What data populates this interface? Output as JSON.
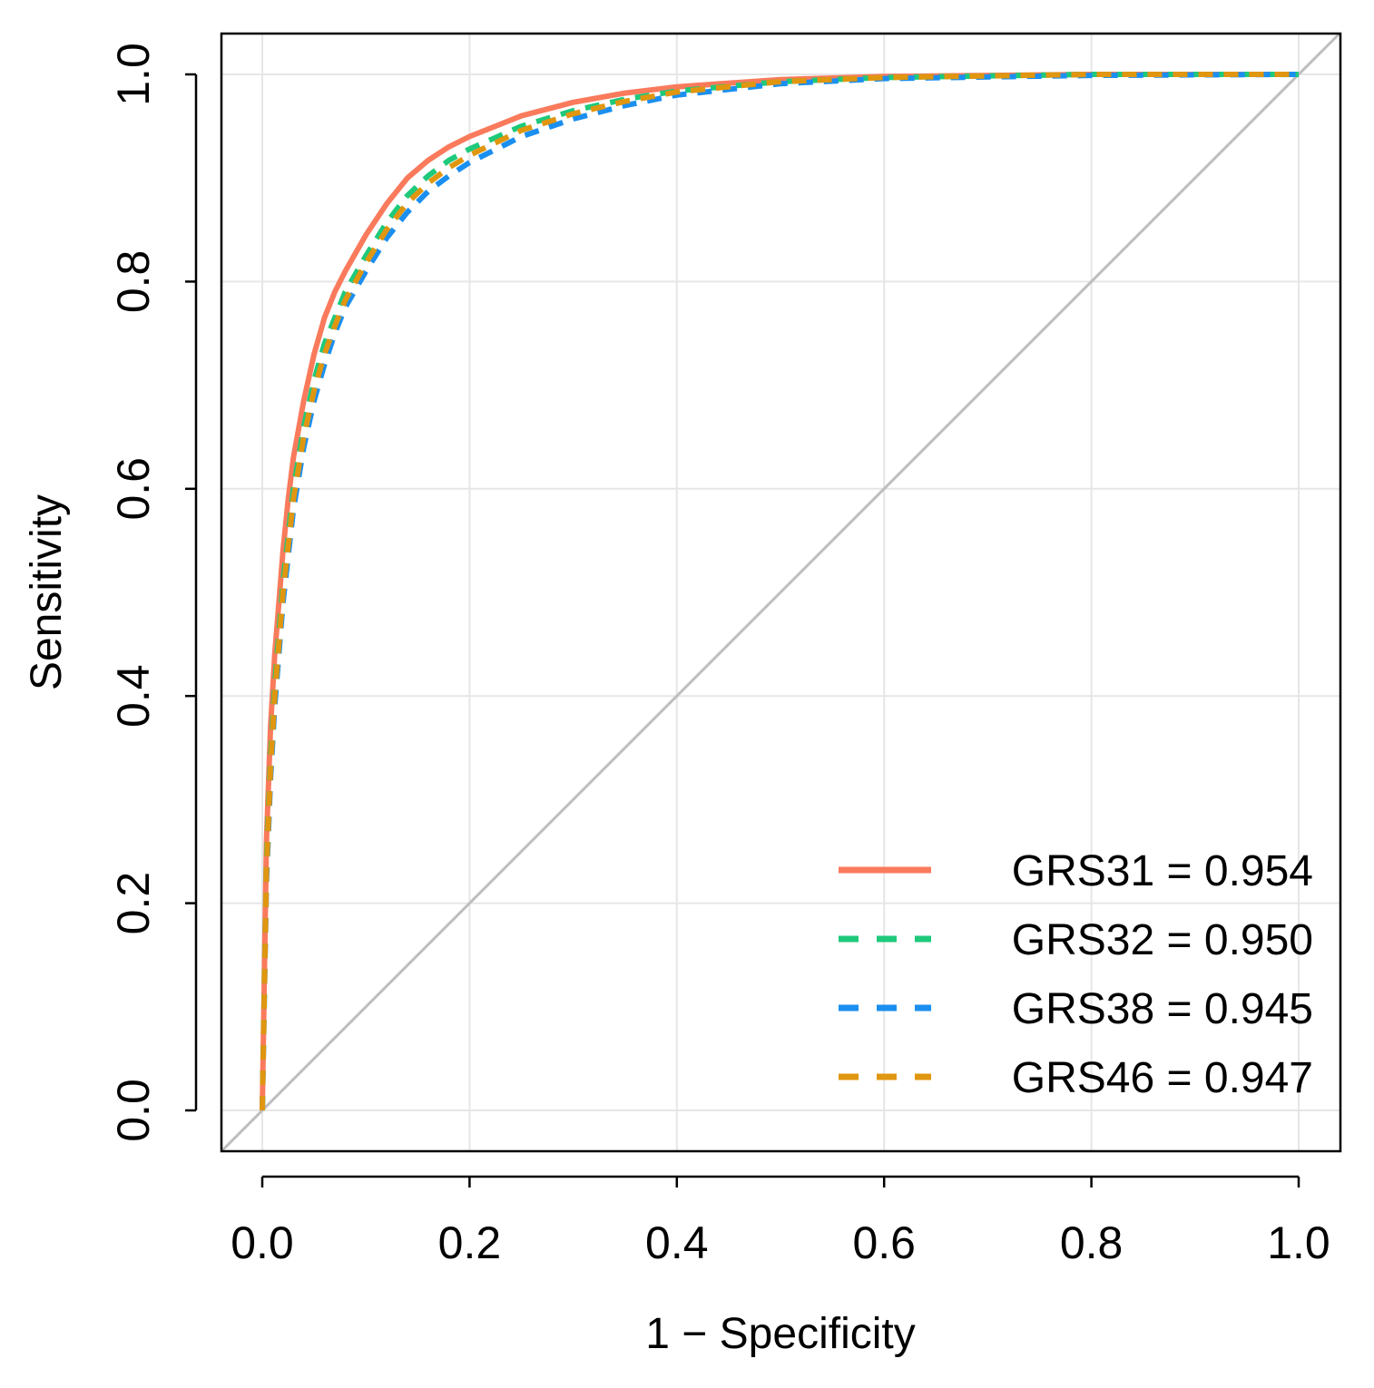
{
  "chart_data": {
    "type": "line",
    "title": "",
    "xlabel": "1 − Specificity",
    "ylabel": "Sensitivity",
    "xlim": [
      0,
      1
    ],
    "ylim": [
      0,
      1
    ],
    "x_ticks": [
      "0.0",
      "0.2",
      "0.4",
      "0.6",
      "0.8",
      "1.0"
    ],
    "y_ticks": [
      "0.0",
      "0.2",
      "0.4",
      "0.6",
      "0.8",
      "1.0"
    ],
    "grid": true,
    "legend_position": "bottom-right",
    "reference_line": {
      "from": [
        0,
        0
      ],
      "to": [
        1,
        1
      ],
      "color": "#bebebe"
    },
    "series": [
      {
        "name": "GRS31",
        "label": "GRS31 = 0.954",
        "auc": 0.954,
        "color": "#fa7a5c",
        "style": "solid",
        "x": [
          0,
          0.004,
          0.008,
          0.012,
          0.016,
          0.02,
          0.025,
          0.03,
          0.04,
          0.05,
          0.06,
          0.07,
          0.08,
          0.1,
          0.12,
          0.14,
          0.16,
          0.18,
          0.2,
          0.25,
          0.3,
          0.35,
          0.4,
          0.5,
          0.6,
          0.8,
          1.0
        ],
        "y": [
          0,
          0.26,
          0.37,
          0.44,
          0.49,
          0.54,
          0.59,
          0.63,
          0.685,
          0.73,
          0.765,
          0.79,
          0.81,
          0.845,
          0.875,
          0.9,
          0.917,
          0.93,
          0.94,
          0.96,
          0.973,
          0.982,
          0.988,
          0.995,
          0.998,
          1.0,
          1.0
        ]
      },
      {
        "name": "GRS32",
        "label": "GRS32 = 0.950",
        "auc": 0.95,
        "color": "#1ec97b",
        "style": "dashed",
        "x": [
          0,
          0.004,
          0.008,
          0.012,
          0.016,
          0.02,
          0.025,
          0.03,
          0.04,
          0.05,
          0.06,
          0.07,
          0.08,
          0.1,
          0.12,
          0.14,
          0.16,
          0.18,
          0.2,
          0.25,
          0.3,
          0.35,
          0.4,
          0.5,
          0.6,
          0.8,
          1.0
        ],
        "y": [
          0,
          0.24,
          0.34,
          0.41,
          0.46,
          0.51,
          0.555,
          0.6,
          0.66,
          0.705,
          0.74,
          0.765,
          0.79,
          0.825,
          0.857,
          0.883,
          0.902,
          0.917,
          0.928,
          0.95,
          0.965,
          0.976,
          0.984,
          0.993,
          0.997,
          1.0,
          1.0
        ]
      },
      {
        "name": "GRS38",
        "label": "GRS38 = 0.945",
        "auc": 0.945,
        "color": "#1b8ff0",
        "style": "dashed",
        "x": [
          0,
          0.004,
          0.008,
          0.012,
          0.016,
          0.02,
          0.025,
          0.03,
          0.04,
          0.05,
          0.06,
          0.07,
          0.08,
          0.1,
          0.12,
          0.14,
          0.16,
          0.18,
          0.2,
          0.25,
          0.3,
          0.35,
          0.4,
          0.5,
          0.6,
          0.8,
          1.0
        ],
        "y": [
          0,
          0.22,
          0.32,
          0.39,
          0.44,
          0.49,
          0.535,
          0.58,
          0.64,
          0.685,
          0.72,
          0.75,
          0.775,
          0.81,
          0.842,
          0.867,
          0.887,
          0.902,
          0.915,
          0.94,
          0.957,
          0.97,
          0.98,
          0.991,
          0.996,
          0.999,
          1.0
        ]
      },
      {
        "name": "GRS46",
        "label": "GRS46 = 0.947",
        "auc": 0.947,
        "color": "#e0960f",
        "style": "dashed",
        "x": [
          0,
          0.004,
          0.008,
          0.012,
          0.016,
          0.02,
          0.025,
          0.03,
          0.04,
          0.05,
          0.06,
          0.07,
          0.08,
          0.1,
          0.12,
          0.14,
          0.16,
          0.18,
          0.2,
          0.25,
          0.3,
          0.35,
          0.4,
          0.5,
          0.6,
          0.8,
          1.0
        ],
        "y": [
          0,
          0.23,
          0.33,
          0.4,
          0.45,
          0.5,
          0.545,
          0.59,
          0.65,
          0.695,
          0.73,
          0.757,
          0.782,
          0.818,
          0.85,
          0.876,
          0.895,
          0.91,
          0.922,
          0.946,
          0.962,
          0.974,
          0.983,
          0.993,
          0.997,
          1.0,
          1.0
        ]
      }
    ]
  }
}
